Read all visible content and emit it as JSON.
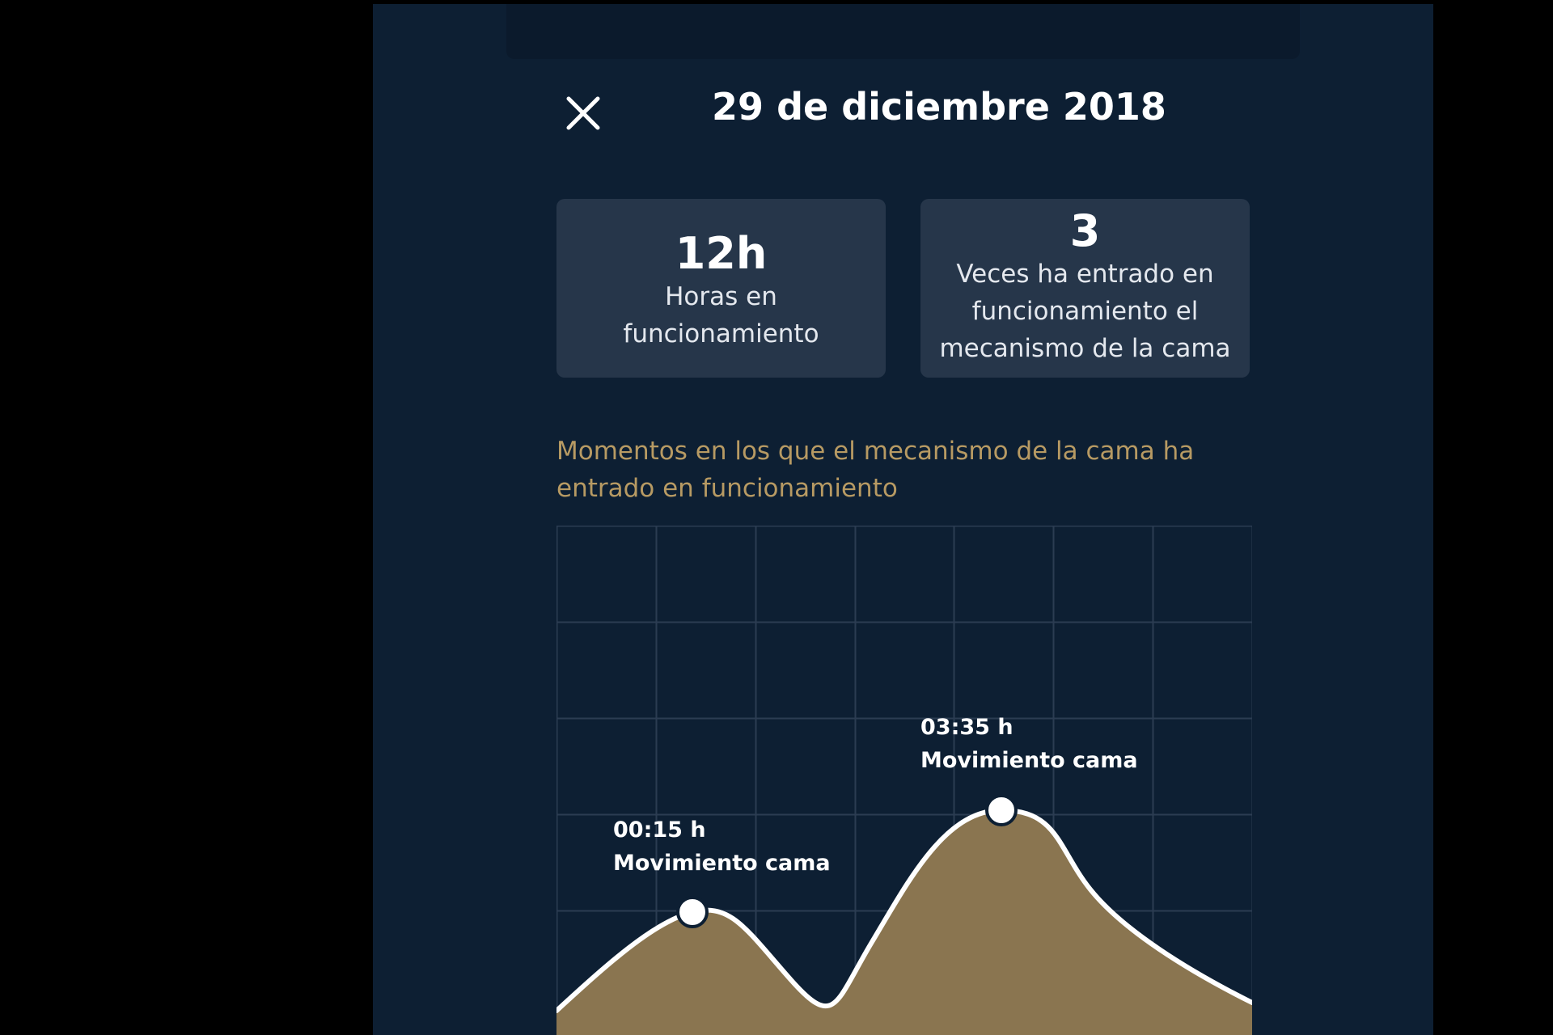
{
  "header": {
    "title": "29 de diciembre 2018",
    "close_icon": "close-icon"
  },
  "stats": [
    {
      "value": "12h",
      "label": "Horas en funcionamiento"
    },
    {
      "value": "3",
      "label": "Veces ha entrado en funcionamiento el mecanismo de la cama"
    }
  ],
  "chart_caption": "Momentos en los que el mecanismo de la cama ha entrado en funcionamiento",
  "colors": {
    "background": "#0d1f33",
    "card": "#26364a",
    "accent": "#b79a63",
    "area_fill": "#8a7550",
    "line": "#ffffff",
    "grid": "#2b3c52"
  },
  "chart_data": {
    "type": "area",
    "grid": true,
    "annotations": [
      {
        "time": "00:15 h",
        "label": "Movimiento cama"
      },
      {
        "time": "03:35 h",
        "label": "Movimiento cama"
      }
    ]
  }
}
